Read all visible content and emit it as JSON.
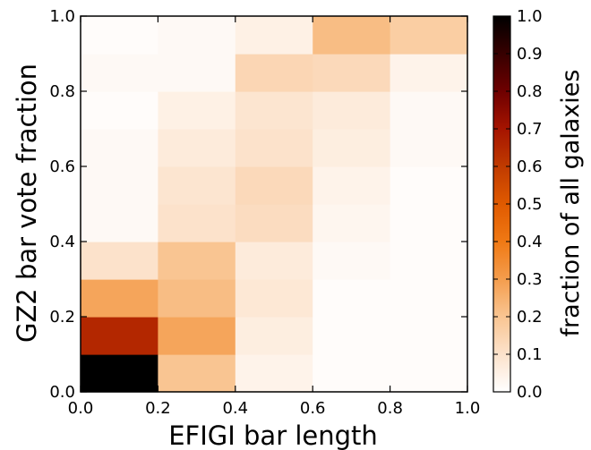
{
  "chart_data": {
    "type": "heatmap",
    "xlabel": "EFIGI bar length",
    "ylabel": "GZ2 bar vote fraction",
    "colorbar_label": "fraction of all galaxies",
    "colormap": "gist_heat_r",
    "xlim": [
      0.0,
      1.0
    ],
    "ylim": [
      0.0,
      1.0
    ],
    "clim": [
      0.0,
      1.0
    ],
    "x_ticks": [
      "0.0",
      "0.2",
      "0.4",
      "0.6",
      "0.8",
      "1.0"
    ],
    "y_ticks": [
      "0.0",
      "0.2",
      "0.4",
      "0.6",
      "0.8",
      "1.0"
    ],
    "colorbar_ticks": [
      "0.0",
      "0.1",
      "0.2",
      "0.3",
      "0.4",
      "0.5",
      "0.6",
      "0.7",
      "0.8",
      "0.9",
      "1.0"
    ],
    "x_bin_edges": [
      0.0,
      0.2,
      0.4,
      0.6,
      0.8,
      1.0
    ],
    "y_bin_edges": [
      0.0,
      0.1,
      0.2,
      0.3,
      0.4,
      0.5,
      0.6,
      0.7,
      0.8,
      0.9,
      1.0
    ],
    "values_by_row_from_bottom": [
      [
        1.0,
        0.2,
        0.04,
        0.01,
        0.01
      ],
      [
        0.65,
        0.28,
        0.06,
        0.01,
        0.01
      ],
      [
        0.28,
        0.22,
        0.08,
        0.01,
        0.01
      ],
      [
        0.1,
        0.2,
        0.07,
        0.02,
        0.01
      ],
      [
        0.02,
        0.1,
        0.12,
        0.03,
        0.01
      ],
      [
        0.02,
        0.09,
        0.13,
        0.04,
        0.01
      ],
      [
        0.02,
        0.07,
        0.1,
        0.06,
        0.02
      ],
      [
        0.01,
        0.05,
        0.09,
        0.07,
        0.02
      ],
      [
        0.02,
        0.02,
        0.14,
        0.13,
        0.04
      ],
      [
        0.01,
        0.02,
        0.05,
        0.22,
        0.17
      ]
    ]
  }
}
